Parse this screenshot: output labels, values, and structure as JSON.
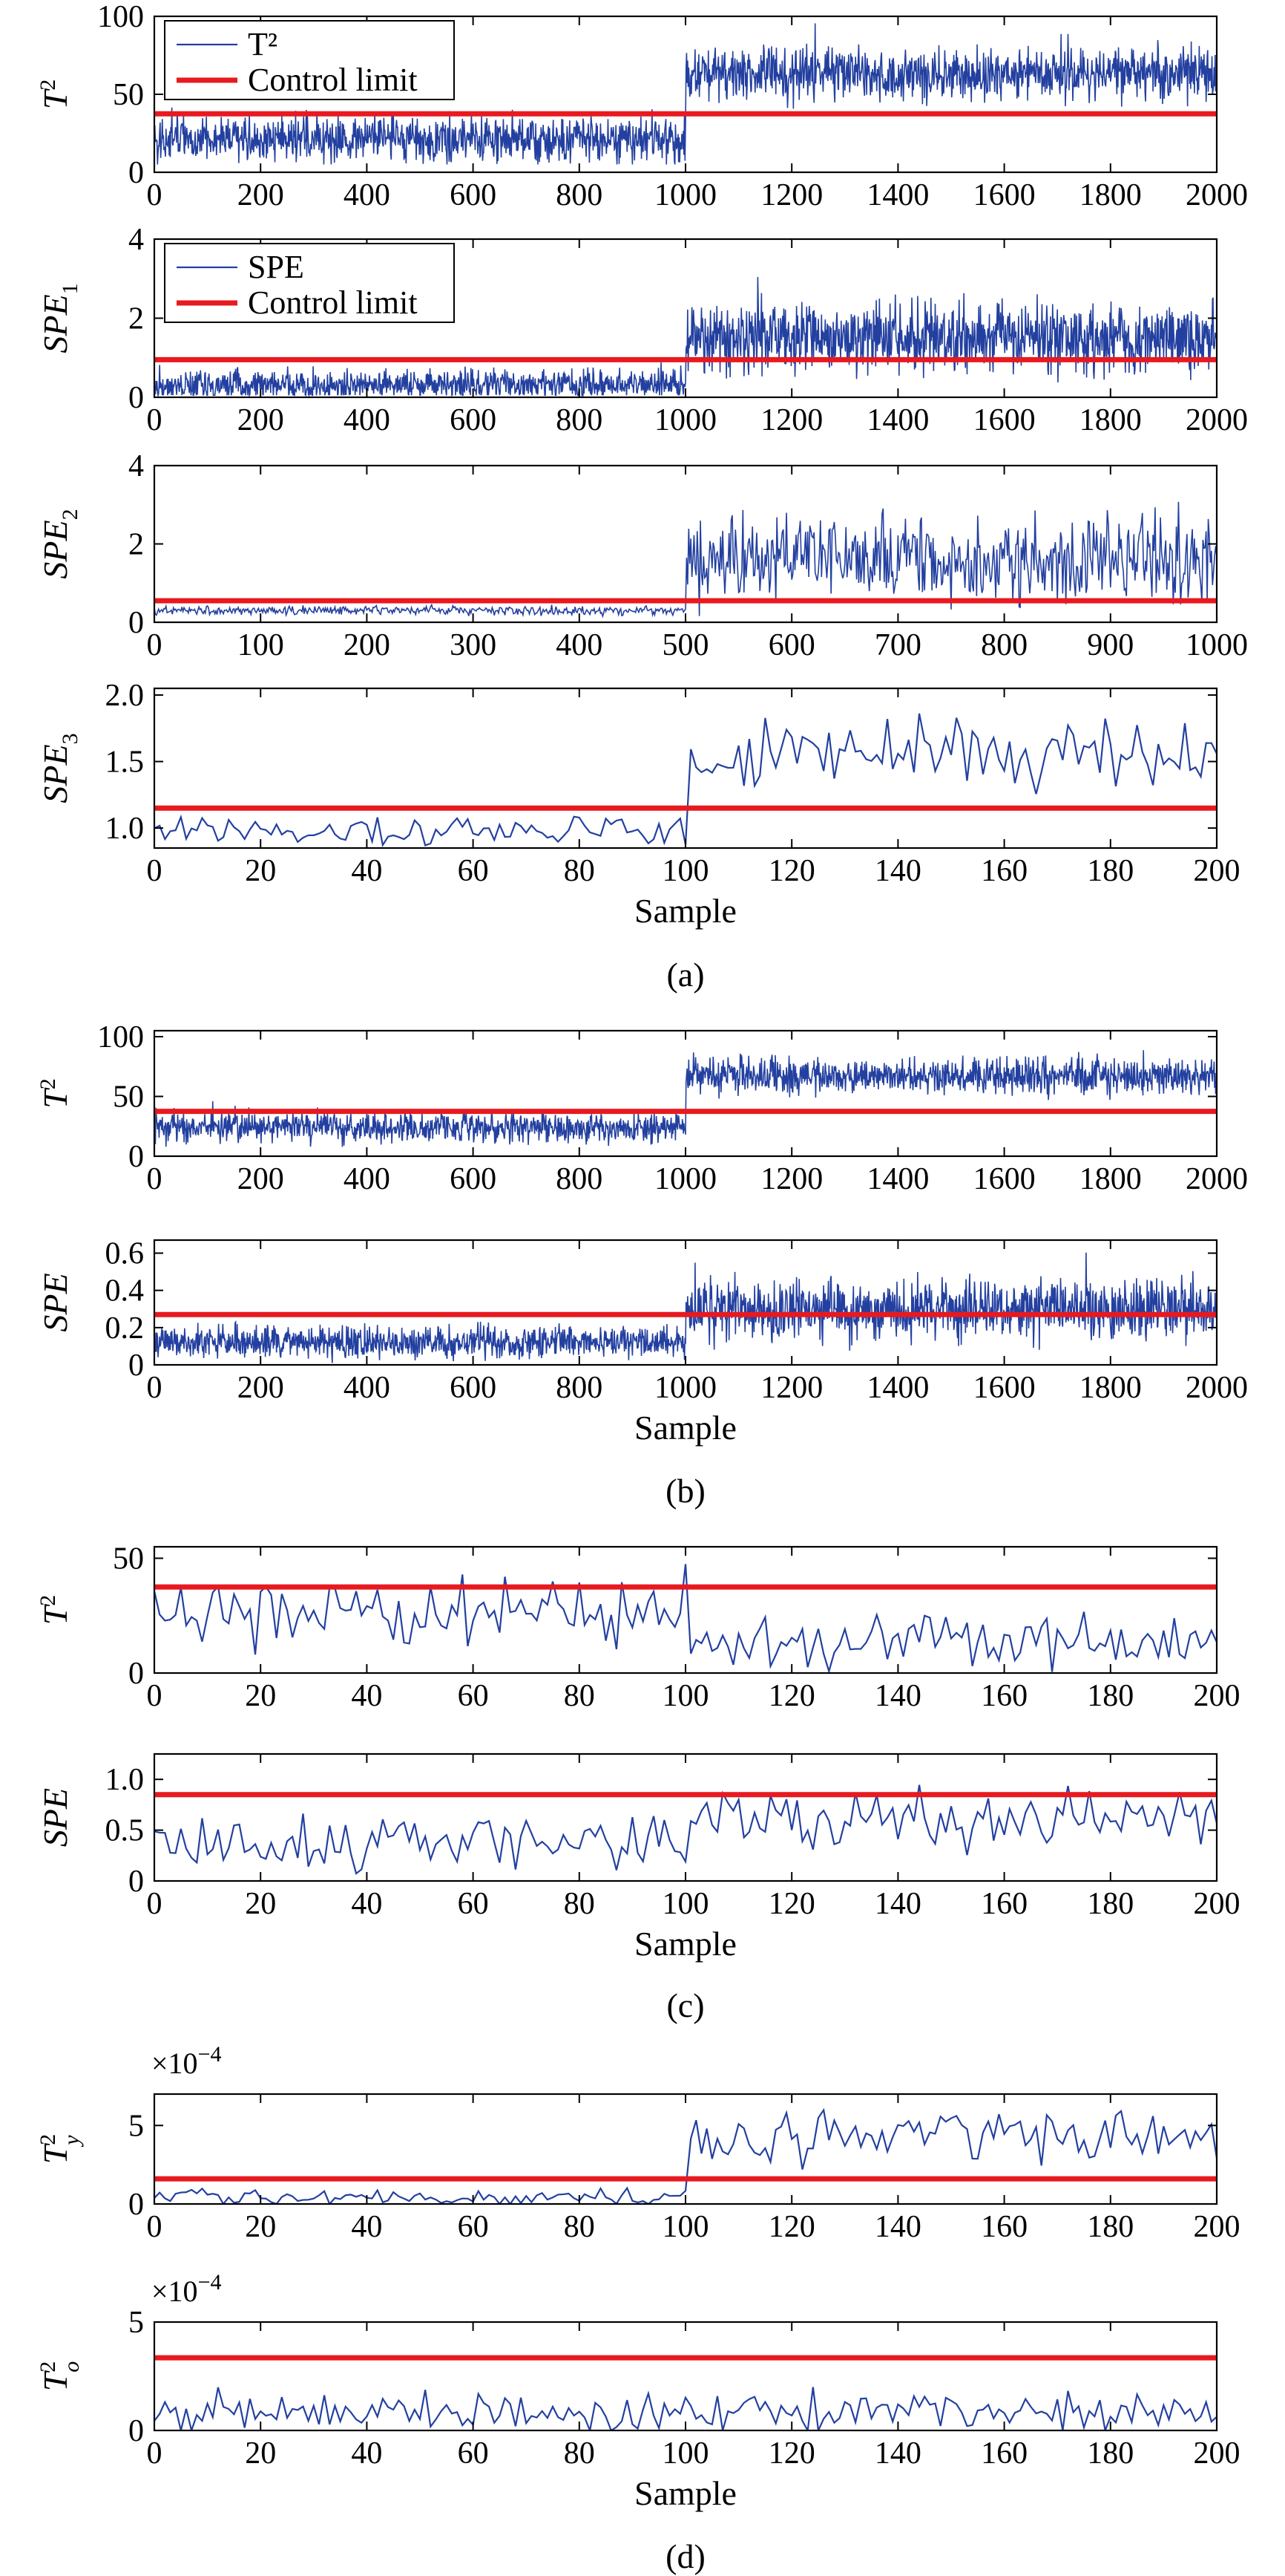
{
  "figure_captions": [
    "(a)",
    "(b)",
    "(c)",
    "(d)"
  ],
  "colors": {
    "signal": "#2340a0",
    "control_limit": "#e8191f",
    "axis": "#000000"
  },
  "chart_data": [
    {
      "id": "a1",
      "type": "line",
      "ylabel": "T",
      "ylabel_sup": "2",
      "ylabel_sub": "",
      "xlim": [
        0,
        2000
      ],
      "xticks": [
        0,
        200,
        400,
        600,
        800,
        1000,
        1200,
        1400,
        1600,
        1800,
        2000
      ],
      "ylim": [
        0,
        100
      ],
      "yticks": [
        0,
        50,
        100
      ],
      "ytick_labels": [
        "0",
        "50",
        "100"
      ],
      "legend": {
        "position": "top-left",
        "signal": "T²",
        "limit": "Control limit"
      },
      "control_limit": 37.5,
      "n": 2000,
      "change_at": 1000,
      "segments": [
        {
          "until": 1000,
          "mean": 21,
          "spread": 14
        },
        {
          "until": 2000,
          "mean": 63,
          "spread": 16
        }
      ],
      "ymin_clip": 5,
      "ymax_clip": 100,
      "xlabel": ""
    },
    {
      "id": "a2",
      "type": "line",
      "ylabel": "SPE",
      "ylabel_sup": "",
      "ylabel_sub": "1",
      "xlim": [
        0,
        2000
      ],
      "xticks": [
        0,
        200,
        400,
        600,
        800,
        1000,
        1200,
        1400,
        1600,
        1800,
        2000
      ],
      "ylim": [
        0,
        4
      ],
      "yticks": [
        0,
        2,
        4
      ],
      "ytick_labels": [
        "0",
        "2",
        "4"
      ],
      "legend": {
        "position": "top-left",
        "signal": "SPE",
        "limit": "Control limit"
      },
      "control_limit": 0.95,
      "n": 2000,
      "change_at": 1000,
      "segments": [
        {
          "until": 1000,
          "mean": 0.3,
          "spread": 0.35
        },
        {
          "until": 2000,
          "mean": 1.5,
          "spread": 0.8
        }
      ],
      "ymin_clip": 0.05,
      "ymax_clip": 3.5,
      "xlabel": ""
    },
    {
      "id": "a3",
      "type": "line",
      "ylabel": "SPE",
      "ylabel_sup": "",
      "ylabel_sub": "2",
      "xlim": [
        0,
        1000
      ],
      "xticks": [
        0,
        100,
        200,
        300,
        400,
        500,
        600,
        700,
        800,
        900,
        1000
      ],
      "ylim": [
        0,
        4
      ],
      "yticks": [
        0,
        2,
        4
      ],
      "ytick_labels": [
        "0",
        "2",
        "4"
      ],
      "legend": null,
      "control_limit": 0.55,
      "n": 1000,
      "change_at": 500,
      "segments": [
        {
          "until": 500,
          "mean": 0.3,
          "spread": 0.1
        },
        {
          "until": 1000,
          "mean": 1.6,
          "spread": 1.0
        }
      ],
      "ymin_clip": 0.1,
      "ymax_clip": 3.4,
      "xlabel": ""
    },
    {
      "id": "a4",
      "type": "line",
      "ylabel": "SPE",
      "ylabel_sup": "",
      "ylabel_sub": "3",
      "xlim": [
        0,
        200
      ],
      "xticks": [
        0,
        20,
        40,
        60,
        80,
        100,
        120,
        140,
        160,
        180,
        200
      ],
      "ylim": [
        0.85,
        2.05
      ],
      "yticks": [
        1.0,
        1.5,
        2.0
      ],
      "ytick_labels": [
        "1.0",
        "1.5",
        "2.0"
      ],
      "legend": null,
      "control_limit": 1.15,
      "n": 200,
      "change_at": 100,
      "segments": [
        {
          "until": 100,
          "mean": 0.98,
          "spread": 0.1
        },
        {
          "until": 200,
          "mean": 1.55,
          "spread": 0.22
        }
      ],
      "ymin_clip": 0.87,
      "ymax_clip": 2.02,
      "xlabel": "Sample"
    },
    {
      "id": "b1",
      "type": "line",
      "ylabel": "T",
      "ylabel_sup": "2",
      "ylabel_sub": "",
      "xlim": [
        0,
        2000
      ],
      "xticks": [
        0,
        200,
        400,
        600,
        800,
        1000,
        1200,
        1400,
        1600,
        1800,
        2000
      ],
      "ylim": [
        0,
        105
      ],
      "yticks": [
        0,
        50,
        100
      ],
      "ytick_labels": [
        "0",
        "50",
        "100"
      ],
      "legend": null,
      "control_limit": 37.5,
      "n": 2000,
      "change_at": 1000,
      "segments": [
        {
          "until": 1000,
          "mean": 24,
          "spread": 12
        },
        {
          "until": 2000,
          "mean": 67,
          "spread": 14
        }
      ],
      "ymin_clip": 5,
      "ymax_clip": 103,
      "xlabel": ""
    },
    {
      "id": "b2",
      "type": "line",
      "ylabel": "SPE",
      "ylabel_sup": "",
      "ylabel_sub": "",
      "xlim": [
        0,
        2000
      ],
      "xticks": [
        0,
        200,
        400,
        600,
        800,
        1000,
        1200,
        1400,
        1600,
        1800,
        2000
      ],
      "ylim": [
        0,
        0.67
      ],
      "yticks": [
        0,
        0.2,
        0.4,
        0.6
      ],
      "ytick_labels": [
        "0",
        "0.2",
        "0.4",
        "0.6"
      ],
      "legend": null,
      "control_limit": 0.27,
      "n": 2000,
      "change_at": 1000,
      "segments": [
        {
          "until": 1000,
          "mean": 0.12,
          "spread": 0.08
        },
        {
          "until": 2000,
          "mean": 0.3,
          "spread": 0.15
        }
      ],
      "ymin_clip": 0.01,
      "ymax_clip": 0.66,
      "xlabel": "Sample"
    },
    {
      "id": "c1",
      "type": "line",
      "ylabel": "T",
      "ylabel_sup": "2",
      "ylabel_sub": "",
      "xlim": [
        0,
        200
      ],
      "xticks": [
        0,
        20,
        40,
        60,
        80,
        100,
        120,
        140,
        160,
        180,
        200
      ],
      "ylim": [
        0,
        55
      ],
      "yticks": [
        0,
        50
      ],
      "ytick_labels": [
        "0",
        "50"
      ],
      "legend": null,
      "control_limit": 37.5,
      "n": 200,
      "change_at": 100,
      "segments": [
        {
          "until": 100,
          "mean": 24,
          "spread": 13
        },
        {
          "until": 200,
          "mean": 13,
          "spread": 11
        }
      ],
      "ymin_clip": 0.5,
      "ymax_clip": 55,
      "xlabel": ""
    },
    {
      "id": "c2",
      "type": "line",
      "ylabel": "SPE",
      "ylabel_sup": "",
      "ylabel_sub": "",
      "xlim": [
        0,
        200
      ],
      "xticks": [
        0,
        20,
        40,
        60,
        80,
        100,
        120,
        140,
        160,
        180,
        200
      ],
      "ylim": [
        0,
        1.25
      ],
      "yticks": [
        0,
        0.5,
        1.0
      ],
      "ytick_labels": [
        "0",
        "0.5",
        "1.0"
      ],
      "legend": null,
      "control_limit": 0.85,
      "n": 200,
      "change_at": 100,
      "segments": [
        {
          "until": 100,
          "mean": 0.38,
          "spread": 0.25
        },
        {
          "until": 200,
          "mean": 0.6,
          "spread": 0.25
        }
      ],
      "ymin_clip": 0.02,
      "ymax_clip": 1.22,
      "xlabel": "Sample"
    },
    {
      "id": "d1",
      "type": "line",
      "ylabel": "T",
      "ylabel_sup": "2",
      "ylabel_sub": "y",
      "multiplier": "×10",
      "multiplier_exp": "−4",
      "xlim": [
        0,
        200
      ],
      "xticks": [
        0,
        20,
        40,
        60,
        80,
        100,
        120,
        140,
        160,
        180,
        200
      ],
      "ylim": [
        0,
        7
      ],
      "yticks": [
        0,
        5
      ],
      "ytick_labels": [
        "0",
        "5"
      ],
      "legend": null,
      "control_limit": 1.6,
      "n": 200,
      "change_at": 100,
      "segments": [
        {
          "until": 100,
          "mean": 0.4,
          "spread": 0.5
        },
        {
          "until": 200,
          "mean": 4.2,
          "spread": 1.5
        }
      ],
      "ymin_clip": 0.0,
      "ymax_clip": 6.9,
      "xlabel": ""
    },
    {
      "id": "d2",
      "type": "line",
      "ylabel": "T",
      "ylabel_sup": "2",
      "ylabel_sub": "o",
      "multiplier": "×10",
      "multiplier_exp": "−4",
      "xlim": [
        0,
        200
      ],
      "xticks": [
        0,
        20,
        40,
        60,
        80,
        100,
        120,
        140,
        160,
        180,
        200
      ],
      "ylim": [
        0,
        5
      ],
      "yticks": [
        0,
        5
      ],
      "ytick_labels": [
        "0",
        "5"
      ],
      "legend": null,
      "control_limit": 3.35,
      "n": 200,
      "change_at": 100,
      "segments": [
        {
          "until": 100,
          "mean": 0.9,
          "spread": 0.9
        },
        {
          "until": 200,
          "mean": 0.9,
          "spread": 0.9
        }
      ],
      "ymin_clip": 0.0,
      "ymax_clip": 4.6,
      "xlabel": "Sample"
    }
  ]
}
